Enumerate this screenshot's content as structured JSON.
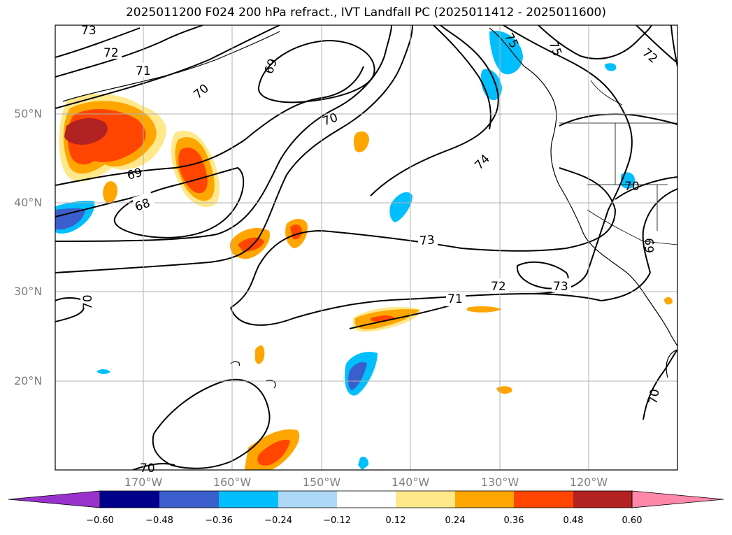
{
  "title": "2025011200 F024 200 hPa refract., IVT Landfall PC (2025011412 - 2025011600)",
  "lat_labels": [
    "50°N",
    "40°N",
    "30°N",
    "20°N"
  ],
  "lon_labels": [
    "170°W",
    "160°W",
    "150°W",
    "140°W",
    "130°W",
    "120°W"
  ],
  "contour_labels": [
    "73",
    "72",
    "71",
    "70",
    "69",
    "68",
    "70",
    "69",
    "70",
    "74",
    "75",
    "75",
    "72",
    "73",
    "72",
    "73",
    "71",
    "70",
    "70",
    "69",
    "70",
    "70"
  ],
  "colorbar": {
    "ticks": [
      "−0.60",
      "−0.48",
      "−0.36",
      "−0.24",
      "−0.12",
      "0.12",
      "0.24",
      "0.36",
      "0.48",
      "0.60"
    ],
    "colors": [
      "#9932cc",
      "#00008b",
      "#3a5fcd",
      "#00bfff",
      "#add8f5",
      "#ffffff",
      "#ffe88a",
      "#ffa500",
      "#ff4500",
      "#b22222",
      "#ff88aa"
    ]
  }
}
